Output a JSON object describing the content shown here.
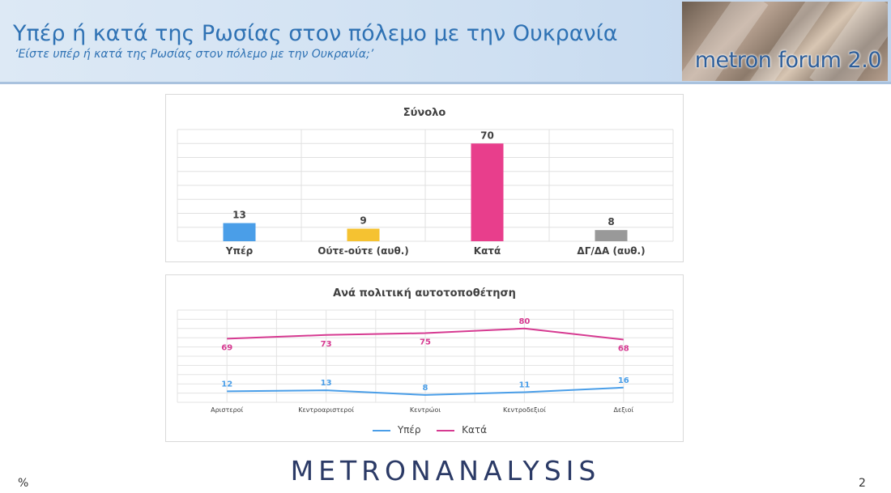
{
  "header": {
    "title": "Υπέρ ή κατά της Ρωσίας στον πόλεμο με την Ουκρανία",
    "subtitle": "‘Είστε υπέρ ή κατά της Ρωσίας στον πόλεμο με την Ουκρανία;’",
    "logo_text": "metron forum 2.0"
  },
  "footer": {
    "brand_left": "METRON",
    "brand_right": "ANALYSIS",
    "percent_sign": "%",
    "page_number": "2"
  },
  "colors": {
    "title_blue": "#2f72b4",
    "yper": "#4a9ee8",
    "oute": "#f5c231",
    "kata": "#e83e8c",
    "dg": "#999999",
    "line_yper": "#4a9ee8",
    "line_kata": "#d63a91"
  },
  "chart_data": [
    {
      "type": "bar",
      "title": "Σύνολο",
      "categories": [
        "Υπέρ",
        "Ούτε-ούτε (αυθ.)",
        "Κατά",
        "ΔΓ/ΔΑ (αυθ.)"
      ],
      "values": [
        13,
        9,
        70,
        8
      ],
      "colors": [
        "#4a9ee8",
        "#f5c231",
        "#e83e8c",
        "#999999"
      ],
      "ylim": [
        0,
        80
      ],
      "grid": true
    },
    {
      "type": "line",
      "title": "Ανά πολιτική αυτοτοποθέτηση",
      "categories": [
        "Αριστεροί",
        "Κεντροαριστεροί",
        "Κεντρώοι",
        "Κεντροδεξιοί",
        "Δεξιοί"
      ],
      "series": [
        {
          "name": "Υπέρ",
          "values": [
            12,
            13,
            8,
            11,
            16
          ],
          "color": "#4a9ee8"
        },
        {
          "name": "Κατά",
          "values": [
            69,
            73,
            75,
            80,
            68
          ],
          "color": "#d63a91"
        }
      ],
      "ylim": [
        0,
        100
      ],
      "grid": true,
      "legend": "bottom"
    }
  ]
}
